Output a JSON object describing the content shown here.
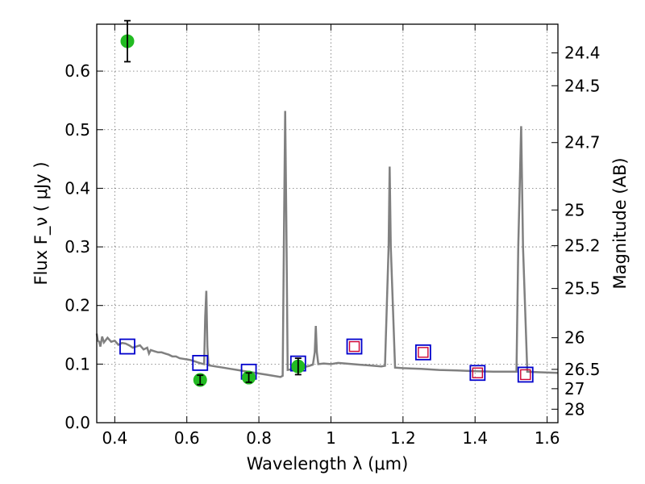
{
  "chart_data": {
    "type": "scatter",
    "xlabel": "Wavelength  λ (μm)",
    "ylabel": "Flux  F_ν  ( μJy )",
    "ylabel_right": "Magnitude (AB)",
    "xlim": [
      0.35,
      1.63
    ],
    "ylim": [
      0.0,
      0.68
    ],
    "x_ticks": [
      {
        "value": 0.4,
        "label": "0.4"
      },
      {
        "value": 0.6,
        "label": "0.6"
      },
      {
        "value": 0.8,
        "label": "0.8"
      },
      {
        "value": 1.0,
        "label": "1"
      },
      {
        "value": 1.2,
        "label": "1.2"
      },
      {
        "value": 1.4,
        "label": "1.4"
      },
      {
        "value": 1.6,
        "label": "1.6"
      }
    ],
    "y_ticks": [
      {
        "value": 0.0,
        "label": "0.0"
      },
      {
        "value": 0.1,
        "label": "0.1"
      },
      {
        "value": 0.2,
        "label": "0.2"
      },
      {
        "value": 0.3,
        "label": "0.3"
      },
      {
        "value": 0.4,
        "label": "0.4"
      },
      {
        "value": 0.5,
        "label": "0.5"
      },
      {
        "value": 0.6,
        "label": "0.6"
      }
    ],
    "right_ticks": [
      {
        "flux": 0.631,
        "label": "24.4"
      },
      {
        "flux": 0.575,
        "label": "24.5"
      },
      {
        "flux": 0.478,
        "label": "24.7"
      },
      {
        "flux": 0.363,
        "label": "25"
      },
      {
        "flux": 0.302,
        "label": "25.2"
      },
      {
        "flux": 0.229,
        "label": "25.5"
      },
      {
        "flux": 0.145,
        "label": "26"
      },
      {
        "flux": 0.091,
        "label": "26.5"
      },
      {
        "flux": 0.058,
        "label": "27"
      },
      {
        "flux": 0.023,
        "label": "28"
      }
    ],
    "grid": true,
    "colors": {
      "model": "#808080",
      "model_squares": "#0000cc",
      "detected": "#22bb22",
      "nir_inner": "#cc0033"
    },
    "model_spectrum": [
      [
        0.35,
        0.152
      ],
      [
        0.353,
        0.14
      ],
      [
        0.357,
        0.138
      ],
      [
        0.36,
        0.13
      ],
      [
        0.365,
        0.147
      ],
      [
        0.37,
        0.137
      ],
      [
        0.38,
        0.145
      ],
      [
        0.39,
        0.138
      ],
      [
        0.4,
        0.14
      ],
      [
        0.41,
        0.133
      ],
      [
        0.42,
        0.136
      ],
      [
        0.43,
        0.135
      ],
      [
        0.44,
        0.132
      ],
      [
        0.45,
        0.128
      ],
      [
        0.46,
        0.13
      ],
      [
        0.47,
        0.132
      ],
      [
        0.48,
        0.125
      ],
      [
        0.49,
        0.128
      ],
      [
        0.495,
        0.118
      ],
      [
        0.5,
        0.124
      ],
      [
        0.51,
        0.122
      ],
      [
        0.52,
        0.12
      ],
      [
        0.53,
        0.12
      ],
      [
        0.54,
        0.118
      ],
      [
        0.55,
        0.116
      ],
      [
        0.56,
        0.113
      ],
      [
        0.57,
        0.113
      ],
      [
        0.58,
        0.11
      ],
      [
        0.59,
        0.109
      ],
      [
        0.6,
        0.108
      ],
      [
        0.61,
        0.107
      ],
      [
        0.62,
        0.105
      ],
      [
        0.63,
        0.103
      ],
      [
        0.64,
        0.101
      ],
      [
        0.648,
        0.1
      ],
      [
        0.651,
        0.18
      ],
      [
        0.654,
        0.225
      ],
      [
        0.657,
        0.13
      ],
      [
        0.66,
        0.098
      ],
      [
        0.68,
        0.096
      ],
      [
        0.7,
        0.094
      ],
      [
        0.72,
        0.092
      ],
      [
        0.74,
        0.09
      ],
      [
        0.76,
        0.088
      ],
      [
        0.78,
        0.086
      ],
      [
        0.8,
        0.084
      ],
      [
        0.82,
        0.082
      ],
      [
        0.84,
        0.08
      ],
      [
        0.86,
        0.078
      ],
      [
        0.866,
        0.08
      ],
      [
        0.87,
        0.35
      ],
      [
        0.873,
        0.532
      ],
      [
        0.876,
        0.35
      ],
      [
        0.88,
        0.09
      ],
      [
        0.9,
        0.092
      ],
      [
        0.92,
        0.094
      ],
      [
        0.94,
        0.097
      ],
      [
        0.95,
        0.099
      ],
      [
        0.955,
        0.12
      ],
      [
        0.958,
        0.165
      ],
      [
        0.961,
        0.12
      ],
      [
        0.965,
        0.1
      ],
      [
        0.98,
        0.101
      ],
      [
        1.0,
        0.1
      ],
      [
        1.02,
        0.102
      ],
      [
        1.04,
        0.101
      ],
      [
        1.06,
        0.1
      ],
      [
        1.08,
        0.099
      ],
      [
        1.1,
        0.098
      ],
      [
        1.12,
        0.097
      ],
      [
        1.14,
        0.096
      ],
      [
        1.15,
        0.097
      ],
      [
        1.16,
        0.3
      ],
      [
        1.163,
        0.437
      ],
      [
        1.166,
        0.3
      ],
      [
        1.178,
        0.094
      ],
      [
        1.2,
        0.093
      ],
      [
        1.25,
        0.092
      ],
      [
        1.3,
        0.09
      ],
      [
        1.35,
        0.089
      ],
      [
        1.4,
        0.088
      ],
      [
        1.45,
        0.087
      ],
      [
        1.5,
        0.087
      ],
      [
        1.515,
        0.087
      ],
      [
        1.52,
        0.3
      ],
      [
        1.528,
        0.506
      ],
      [
        1.533,
        0.3
      ],
      [
        1.545,
        0.087
      ],
      [
        1.58,
        0.086
      ],
      [
        1.63,
        0.085
      ]
    ],
    "model_bands": [
      {
        "x": 0.435,
        "y": 0.13,
        "inner": false
      },
      {
        "x": 0.637,
        "y": 0.102,
        "inner": false
      },
      {
        "x": 0.772,
        "y": 0.087,
        "inner": false
      },
      {
        "x": 0.909,
        "y": 0.101,
        "inner": false
      },
      {
        "x": 1.065,
        "y": 0.13,
        "inner": true
      },
      {
        "x": 1.256,
        "y": 0.12,
        "inner": true
      },
      {
        "x": 1.407,
        "y": 0.085,
        "inner": true
      },
      {
        "x": 1.54,
        "y": 0.082,
        "inner": true
      }
    ],
    "observed": [
      {
        "x": 0.435,
        "y": 0.651,
        "err": 0.035
      },
      {
        "x": 0.637,
        "y": 0.073,
        "err": 0.008
      },
      {
        "x": 0.772,
        "y": 0.077,
        "err": 0.008
      },
      {
        "x": 0.909,
        "y": 0.096,
        "err": 0.014
      }
    ]
  }
}
